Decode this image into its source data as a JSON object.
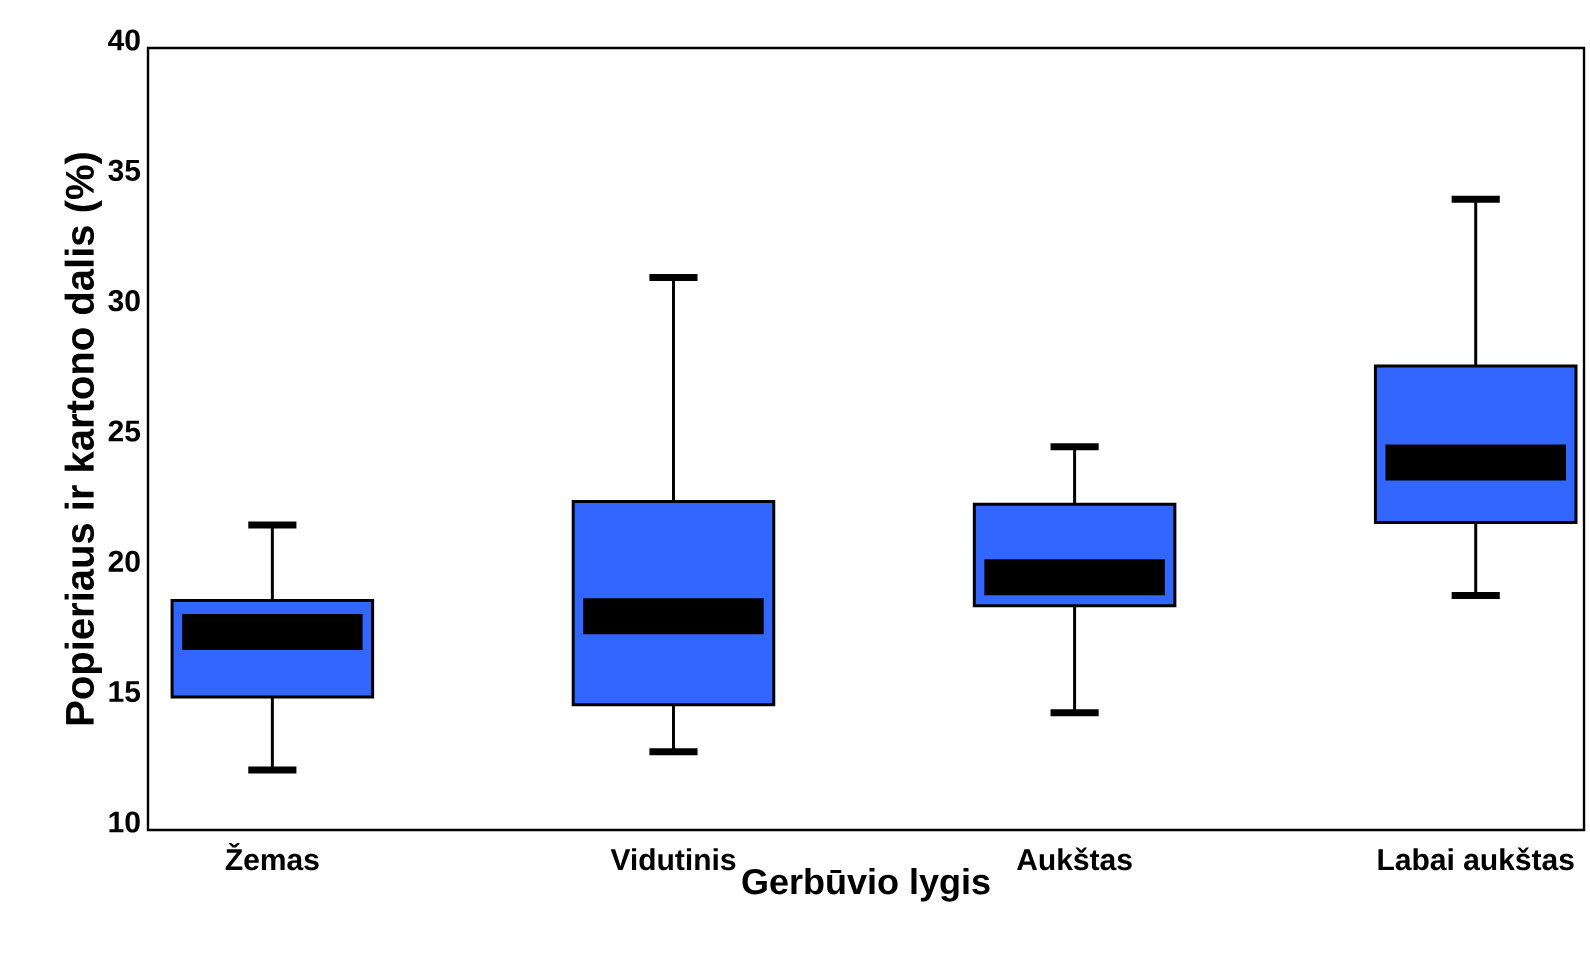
{
  "chart_data": {
    "type": "box",
    "xlabel": "Gerbūvio lygis",
    "ylabel": "Popieriaus ir kartono dalis (%)",
    "categories": [
      "Žemas",
      "Vidutinis",
      "Aukštas",
      "Labai aukštas"
    ],
    "color": "#3366ff",
    "boxes": [
      {
        "low": 12.3,
        "q1": 15.1,
        "median": 17.6,
        "q3": 18.8,
        "high": 21.7
      },
      {
        "low": 13.0,
        "q1": 14.8,
        "median": 18.2,
        "q3": 22.6,
        "high": 31.2
      },
      {
        "low": 14.5,
        "q1": 18.6,
        "median": 19.7,
        "q3": 22.5,
        "high": 24.7
      },
      {
        "low": 19.0,
        "q1": 21.8,
        "median": 24.1,
        "q3": 27.8,
        "high": 34.2
      }
    ],
    "ylim": [
      10,
      40
    ],
    "yticks": [
      10,
      15,
      20,
      25,
      30,
      35,
      40
    ],
    "grid": false
  }
}
